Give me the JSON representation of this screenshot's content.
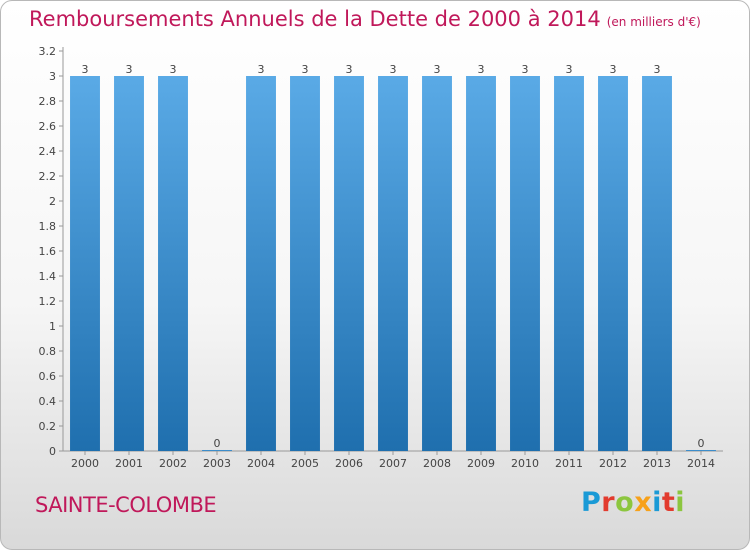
{
  "header": {
    "title": "Remboursements Annuels de la Dette de 2000 à 2014",
    "subtitle": "(en milliers d'€)"
  },
  "footer": {
    "commune": "SAINTE-COLOMBE",
    "brand": "Proxiti",
    "brand_letters": [
      {
        "ch": "P",
        "color": "#1a9ad6"
      },
      {
        "ch": "r",
        "color": "#e23b2e"
      },
      {
        "ch": "o",
        "color": "#8cc63f"
      },
      {
        "ch": "x",
        "color": "#f7a11a"
      },
      {
        "ch": "i",
        "color": "#1a9ad6"
      },
      {
        "ch": "t",
        "color": "#e23b2e"
      },
      {
        "ch": "i",
        "color": "#8cc63f"
      }
    ]
  },
  "colors": {
    "accent": "#c0185a",
    "bar_top": "#5aaae6",
    "bar_bottom": "#1f6fae"
  },
  "chart_data": {
    "type": "bar",
    "categories": [
      "2000",
      "2001",
      "2002",
      "2003",
      "2004",
      "2005",
      "2006",
      "2007",
      "2008",
      "2009",
      "2010",
      "2011",
      "2012",
      "2013",
      "2014"
    ],
    "values": [
      3,
      3,
      3,
      0,
      3,
      3,
      3,
      3,
      3,
      3,
      3,
      3,
      3,
      3,
      0
    ],
    "data_labels": [
      "3",
      "3",
      "3",
      "0",
      "3",
      "3",
      "3",
      "3",
      "3",
      "3",
      "3",
      "3",
      "3",
      "3",
      "0"
    ],
    "y_ticks": [
      0,
      0.2,
      0.4,
      0.6,
      0.8,
      1,
      1.2,
      1.4,
      1.6,
      1.8,
      2,
      2.2,
      2.4,
      2.6,
      2.8,
      3,
      3.2
    ],
    "y_tick_labels": [
      "0",
      "0.2",
      "0.4",
      "0.6",
      "0.8",
      "1",
      "1.2",
      "1.4",
      "1.6",
      "1.8",
      "2",
      "2.2",
      "2.4",
      "2.6",
      "2.8",
      "3",
      "3.2"
    ],
    "ylim": [
      0,
      3.2
    ],
    "grid": false,
    "legend": "none"
  }
}
